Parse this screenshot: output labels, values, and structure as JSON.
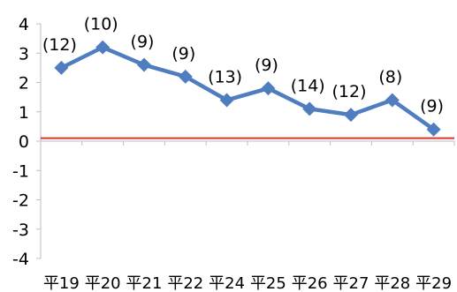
{
  "chart_data": {
    "type": "line",
    "categories": [
      "平19",
      "平20",
      "平21",
      "平22",
      "平24",
      "平25",
      "平26",
      "平27",
      "平28",
      "平29"
    ],
    "series": [
      {
        "values": [
          2.5,
          3.2,
          2.6,
          2.2,
          1.4,
          1.8,
          1.1,
          0.9,
          1.4,
          0.4
        ],
        "data_labels": [
          "(12)",
          "(10)",
          "(9)",
          "(9)",
          "(13)",
          "(9)",
          "(14)",
          "(12)",
          "(8)",
          "(9)"
        ],
        "color": "#4f7dbf",
        "marker": "diamond"
      }
    ],
    "yticks": [
      4,
      3,
      2,
      1,
      0,
      -1,
      -2,
      -3,
      -4
    ],
    "ylim": [
      -4,
      4
    ],
    "reference_line": {
      "value": 0.1,
      "color": "#e0302a"
    },
    "grid": false,
    "legend": "none"
  }
}
